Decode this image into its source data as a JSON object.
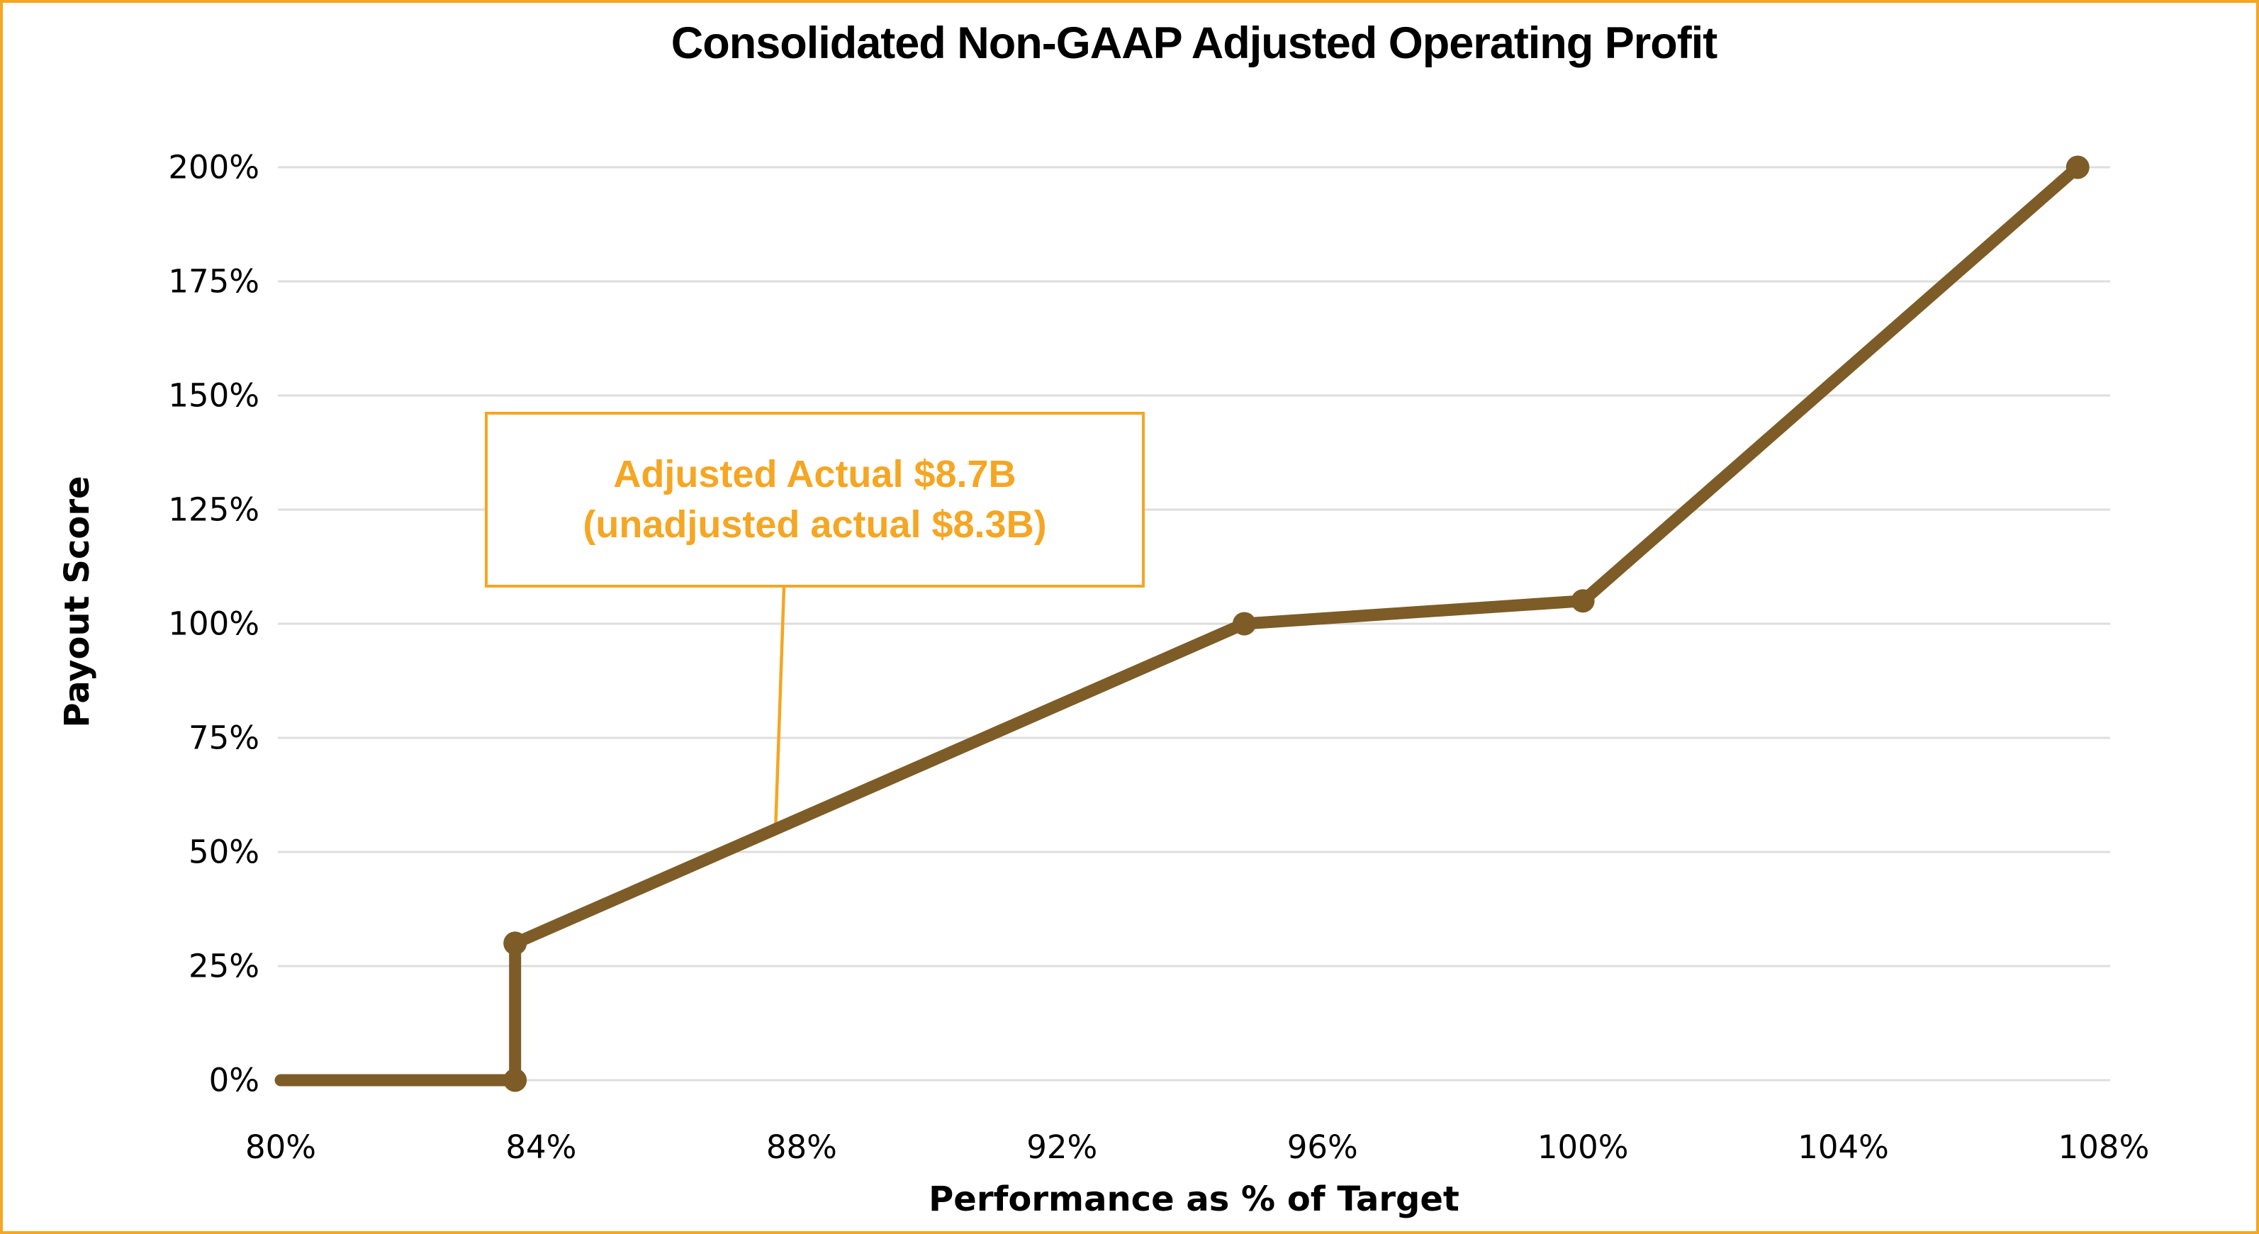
{
  "page": {
    "frame_border_color": "#F5A623",
    "background_color": "#FFFFFF"
  },
  "chart_data": {
    "type": "line",
    "title": "Consolidated Non-GAAP Adjusted Operating Profit",
    "xlabel": "Performance as % of Target",
    "ylabel": "Payout Score",
    "xlim": [
      80,
      108
    ],
    "ylim": [
      0,
      200
    ],
    "grid": "horizontal",
    "grid_color": "#DEDEDE",
    "x_ticks": [
      80,
      84,
      88,
      92,
      96,
      100,
      104,
      108
    ],
    "x_tick_labels": [
      "80%",
      "84%",
      "88%",
      "92%",
      "96%",
      "100%",
      "104%",
      "108%"
    ],
    "y_ticks": [
      0,
      25,
      50,
      75,
      100,
      125,
      150,
      175,
      200
    ],
    "y_tick_labels": [
      "0%",
      "25%",
      "50%",
      "75%",
      "100%",
      "125%",
      "150%",
      "175%",
      "200%"
    ],
    "legend": "none",
    "series": [
      {
        "color": "#7D5C27",
        "points": [
          [
            80,
            0
          ],
          [
            83.6,
            0
          ],
          [
            83.6,
            30
          ],
          [
            94.8,
            100
          ],
          [
            100,
            105
          ],
          [
            107.6,
            200
          ]
        ],
        "marker_points": [
          [
            83.6,
            0
          ],
          [
            83.6,
            30
          ],
          [
            94.8,
            100
          ],
          [
            100,
            105
          ],
          [
            107.6,
            200
          ]
        ]
      }
    ],
    "annotation": {
      "lines": [
        "Adjusted Actual $8.7B",
        "(unadjusted actual $8.3B)"
      ],
      "color": "#F5A623",
      "anchor_x": 87.6,
      "anchor_y": 55
    }
  }
}
